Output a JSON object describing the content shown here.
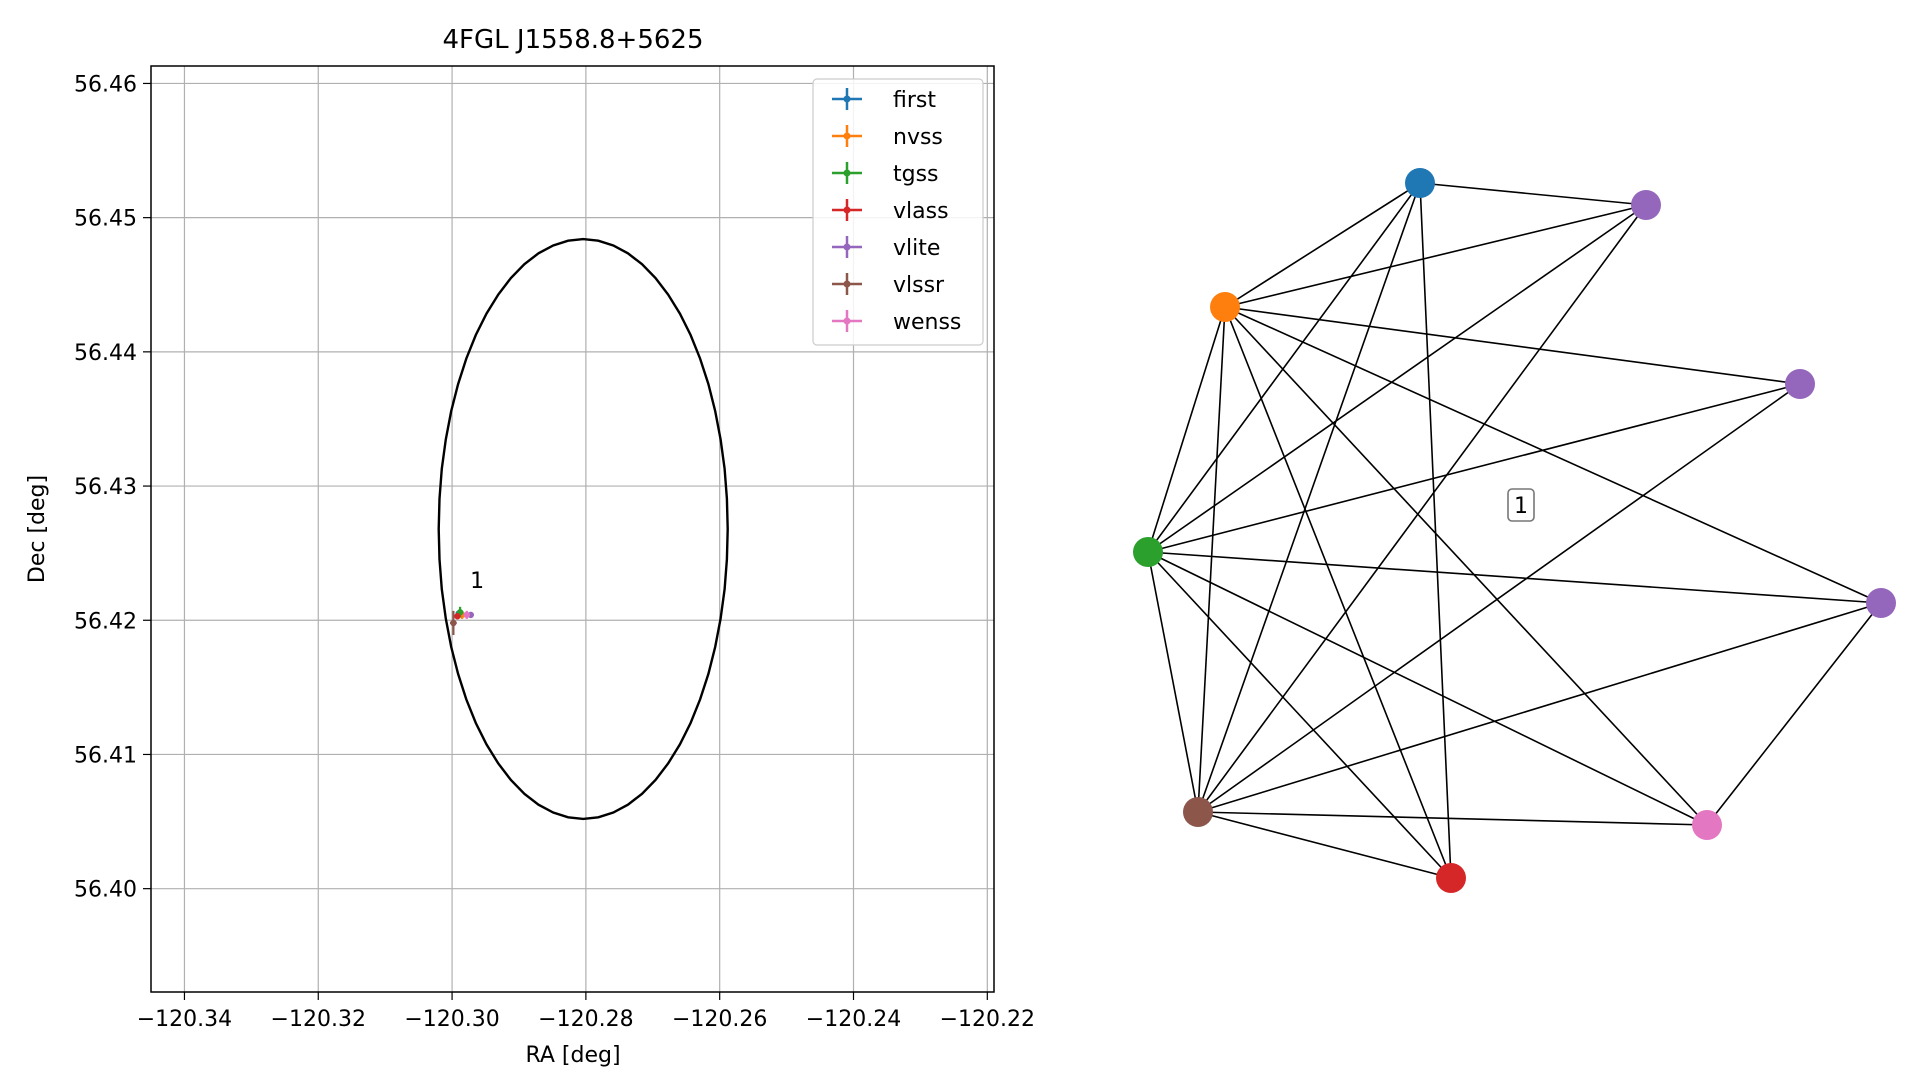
{
  "chart_data": [
    {
      "type": "scatter",
      "title": "4FGL J1558.8+5625",
      "xlabel": "RA [deg]",
      "ylabel": "Dec [deg]",
      "xlim": [
        -120.345,
        -120.219
      ],
      "ylim": [
        56.3923,
        56.4613
      ],
      "x_ticks": [
        -120.34,
        -120.32,
        -120.3,
        -120.28,
        -120.26,
        -120.24,
        -120.22
      ],
      "x_tick_labels": [
        "−120.34",
        "−120.32",
        "−120.30",
        "−120.28",
        "−120.26",
        "−120.24",
        "−120.22"
      ],
      "y_ticks": [
        56.4,
        56.41,
        56.42,
        56.43,
        56.44,
        56.45,
        56.46
      ],
      "y_tick_labels": [
        "56.40",
        "56.41",
        "56.42",
        "56.43",
        "56.44",
        "56.45",
        "56.46"
      ],
      "grid": true,
      "legend_position": "top-right",
      "circle": {
        "center_ra": -120.2804,
        "center_dec": 56.4268,
        "radius_deg": 0.0216
      },
      "annotation": {
        "text": "1",
        "ra": -120.2973,
        "dec": 56.4219
      },
      "series": [
        {
          "name": "first",
          "color": "#1f77b4",
          "ra": -120.299,
          "dec": 56.4205,
          "ra_err": 0.0003,
          "dec_err": 0.0002
        },
        {
          "name": "nvss",
          "color": "#ff7f0e",
          "ra": -120.2985,
          "dec": 56.4204,
          "ra_err": 0.0004,
          "dec_err": 0.0003
        },
        {
          "name": "tgss",
          "color": "#2ca02c",
          "ra": -120.2988,
          "dec": 56.4206,
          "ra_err": 0.0005,
          "dec_err": 0.0004
        },
        {
          "name": "vlass",
          "color": "#d62728",
          "ra": -120.2992,
          "dec": 56.4203,
          "ra_err": 0.0002,
          "dec_err": 0.0002
        },
        {
          "name": "vlite",
          "color": "#9467bd",
          "ra": -120.2972,
          "dec": 56.4204,
          "ra_err": 0.0004,
          "dec_err": 0.0002
        },
        {
          "name": "vlssr",
          "color": "#8c564b",
          "ra": -120.2998,
          "dec": 56.4198,
          "ra_err": 0.0005,
          "dec_err": 0.0009
        },
        {
          "name": "wenss",
          "color": "#e377c2",
          "ra": -120.2978,
          "dec": 56.4204,
          "ra_err": 0.0004,
          "dec_err": 0.0003
        }
      ]
    },
    {
      "type": "network",
      "group_label": "1",
      "nodes": [
        {
          "id": "first",
          "color": "#1f77b4"
        },
        {
          "id": "vlite_a",
          "color": "#9467bd"
        },
        {
          "id": "nvss",
          "color": "#ff7f0e"
        },
        {
          "id": "vlite_b",
          "color": "#9467bd"
        },
        {
          "id": "tgss",
          "color": "#2ca02c"
        },
        {
          "id": "vlite_c",
          "color": "#9467bd"
        },
        {
          "id": "vlssr",
          "color": "#8c564b"
        },
        {
          "id": "wenss",
          "color": "#e377c2"
        },
        {
          "id": "vlass",
          "color": "#d62728"
        }
      ],
      "edges": [
        [
          "first",
          "vlite_a"
        ],
        [
          "first",
          "nvss"
        ],
        [
          "first",
          "tgss"
        ],
        [
          "first",
          "vlssr"
        ],
        [
          "first",
          "vlass"
        ],
        [
          "vlite_a",
          "nvss"
        ],
        [
          "vlite_a",
          "tgss"
        ],
        [
          "vlite_a",
          "vlssr"
        ],
        [
          "nvss",
          "vlite_b"
        ],
        [
          "nvss",
          "tgss"
        ],
        [
          "nvss",
          "vlssr"
        ],
        [
          "nvss",
          "vlass"
        ],
        [
          "nvss",
          "wenss"
        ],
        [
          "nvss",
          "vlite_c"
        ],
        [
          "vlite_b",
          "tgss"
        ],
        [
          "vlite_b",
          "vlssr"
        ],
        [
          "tgss",
          "vlite_c"
        ],
        [
          "tgss",
          "vlssr"
        ],
        [
          "tgss",
          "vlass"
        ],
        [
          "tgss",
          "wenss"
        ],
        [
          "vlite_c",
          "vlssr"
        ],
        [
          "vlite_c",
          "wenss"
        ],
        [
          "vlssr",
          "wenss"
        ],
        [
          "vlssr",
          "vlass"
        ]
      ]
    }
  ]
}
